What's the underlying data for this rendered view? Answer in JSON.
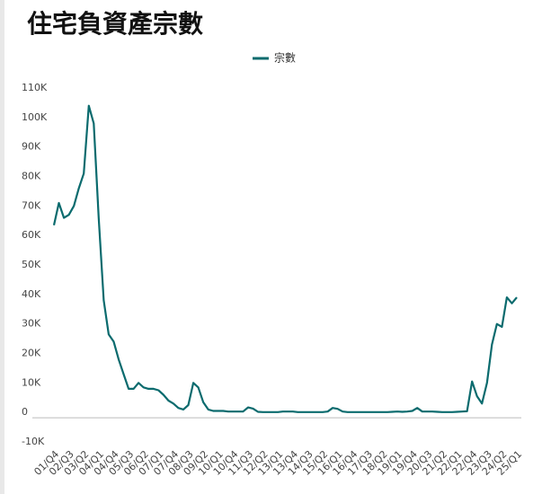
{
  "chart_data": {
    "type": "line",
    "title": "住宅負資產宗數",
    "categories": [
      "01/Q4",
      null,
      null,
      "02/Q3",
      null,
      null,
      "03/Q2",
      null,
      null,
      "04/Q1",
      null,
      null,
      "04/Q4",
      null,
      null,
      "05/Q3",
      null,
      null,
      "06/Q2",
      null,
      null,
      "07/Q1",
      null,
      null,
      "07/Q4",
      null,
      null,
      "08/Q3",
      null,
      null,
      "09/Q2",
      null,
      null,
      "10/Q1",
      null,
      null,
      "10/Q4",
      null,
      null,
      "11/Q3",
      null,
      null,
      "12/Q2",
      null,
      null,
      "13/Q1",
      null,
      null,
      "13/Q4",
      null,
      null,
      "14/Q3",
      null,
      null,
      "15/Q2",
      null,
      null,
      "16/Q1",
      null,
      null,
      "16/Q4",
      null,
      null,
      "17/Q3",
      null,
      null,
      "18/Q2",
      null,
      null,
      "19/Q1",
      null,
      null,
      "19/Q4",
      null,
      null,
      "20/Q3",
      null,
      null,
      "21/Q2",
      null,
      null,
      "22/Q1",
      null,
      null,
      "22/Q4",
      null,
      null,
      "23/Q3",
      null,
      null,
      "24/Q2",
      null,
      null,
      "25/Q1"
    ],
    "series": [
      {
        "name": "宗數",
        "color": "#0b6b6e",
        "values": [
          63500,
          71000,
          66000,
          67000,
          70000,
          76000,
          81000,
          104000,
          98000,
          66000,
          38000,
          26500,
          24000,
          18000,
          13000,
          8000,
          8000,
          10000,
          8500,
          8000,
          8000,
          7500,
          6000,
          4000,
          3000,
          1500,
          1000,
          2500,
          10000,
          8500,
          3500,
          1000,
          500,
          500,
          500,
          300,
          300,
          300,
          300,
          1700,
          1300,
          200,
          100,
          100,
          100,
          100,
          300,
          300,
          300,
          100,
          100,
          100,
          100,
          100,
          100,
          300,
          1500,
          1200,
          300,
          100,
          100,
          100,
          100,
          100,
          100,
          100,
          100,
          100,
          200,
          300,
          200,
          300,
          500,
          1500,
          300,
          300,
          300,
          200,
          100,
          100,
          100,
          200,
          300,
          400,
          10500,
          5500,
          3000,
          10000,
          23000,
          30000,
          29000,
          39000,
          37000,
          39000
        ]
      }
    ],
    "ylim": [
      -10000,
      110000
    ],
    "yticks": [
      {
        "value": -10000,
        "label": "-10K"
      },
      0,
      {
        "value": 10000,
        "label": "10K"
      },
      {
        "value": 20000,
        "label": "20K"
      },
      {
        "value": 30000,
        "label": "30K"
      },
      {
        "value": 40000,
        "label": "40K"
      },
      {
        "value": 50000,
        "label": "50K"
      },
      {
        "value": 60000,
        "label": "60K"
      },
      {
        "value": 70000,
        "label": "70K"
      },
      {
        "value": 80000,
        "label": "80K"
      },
      {
        "value": 90000,
        "label": "90K"
      },
      {
        "value": 100000,
        "label": "100K"
      },
      {
        "value": 110000,
        "label": "110K"
      }
    ],
    "legend": "top"
  }
}
